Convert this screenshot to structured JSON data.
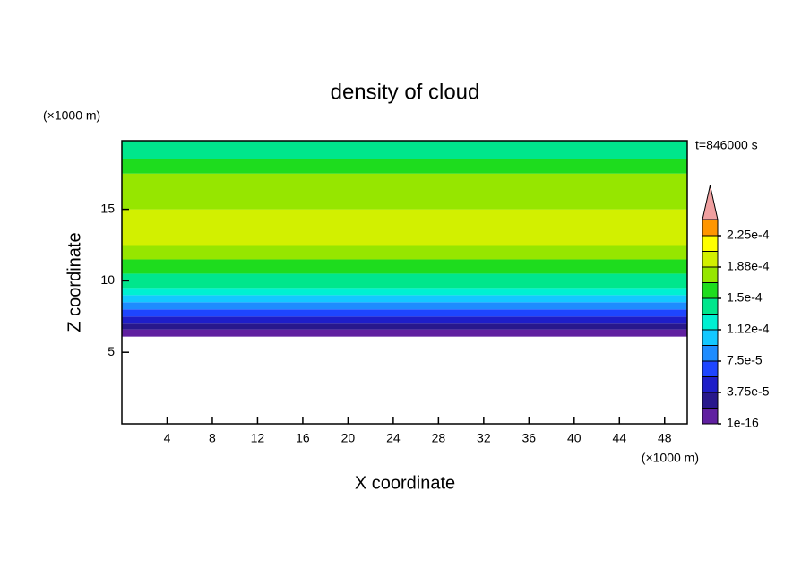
{
  "chart_data": {
    "type": "contour",
    "title": "density of cloud",
    "x_label": "X coordinate",
    "y_label": "Z coordinate",
    "x_unit": "(×1000 m)",
    "y_unit": "(×1000 m)",
    "annotation": "t=846000 s",
    "xlim": [
      0,
      50
    ],
    "ylim": [
      0,
      19.8
    ],
    "xticks": [
      4,
      8,
      12,
      16,
      20,
      24,
      28,
      32,
      36,
      40,
      44,
      48
    ],
    "yticks": [
      5,
      10,
      15
    ],
    "profile": {
      "z_edges": [
        6.1,
        6.6,
        7.0,
        7.5,
        8.0,
        8.5,
        9.0,
        9.5,
        10.5,
        11.5,
        12.5,
        15.0,
        17.5,
        18.5,
        19.8
      ],
      "values": [
        1e-05,
        2.8e-05,
        4.6e-05,
        6.5e-05,
        8.4e-05,
        0.000103,
        0.000122,
        0.00014,
        0.00016,
        0.000178,
        0.000197,
        0.000178,
        0.00016,
        0.00014
      ]
    },
    "levels": [
      1e-16,
      1.875e-05,
      3.75e-05,
      5.625e-05,
      7.5e-05,
      9.375e-05,
      0.0001125,
      0.00013125,
      0.00015,
      0.00016875,
      0.0001875,
      0.00020625,
      0.000225
    ],
    "colors": [
      "#6020a0",
      "#28188c",
      "#1e1ec8",
      "#1e46ff",
      "#1e8cff",
      "#14c8ff",
      "#00f0d2",
      "#00e68c",
      "#1edc1e",
      "#96e600",
      "#d2f000",
      "#ffff00",
      "#ff9600"
    ],
    "over_color": "#f0a0a0",
    "colorbar_ticks": [
      {
        "value": 1e-16,
        "label": "1e-16"
      },
      {
        "value": 3.75e-05,
        "label": "3.75e-5"
      },
      {
        "value": 7.5e-05,
        "label": "7.5e-5"
      },
      {
        "value": 0.0001125,
        "label": "1.12e-4"
      },
      {
        "value": 0.00015,
        "label": "1.5e-4"
      },
      {
        "value": 0.0001875,
        "label": "1.88e-4"
      },
      {
        "value": 0.000225,
        "label": "2.25e-4"
      }
    ]
  }
}
